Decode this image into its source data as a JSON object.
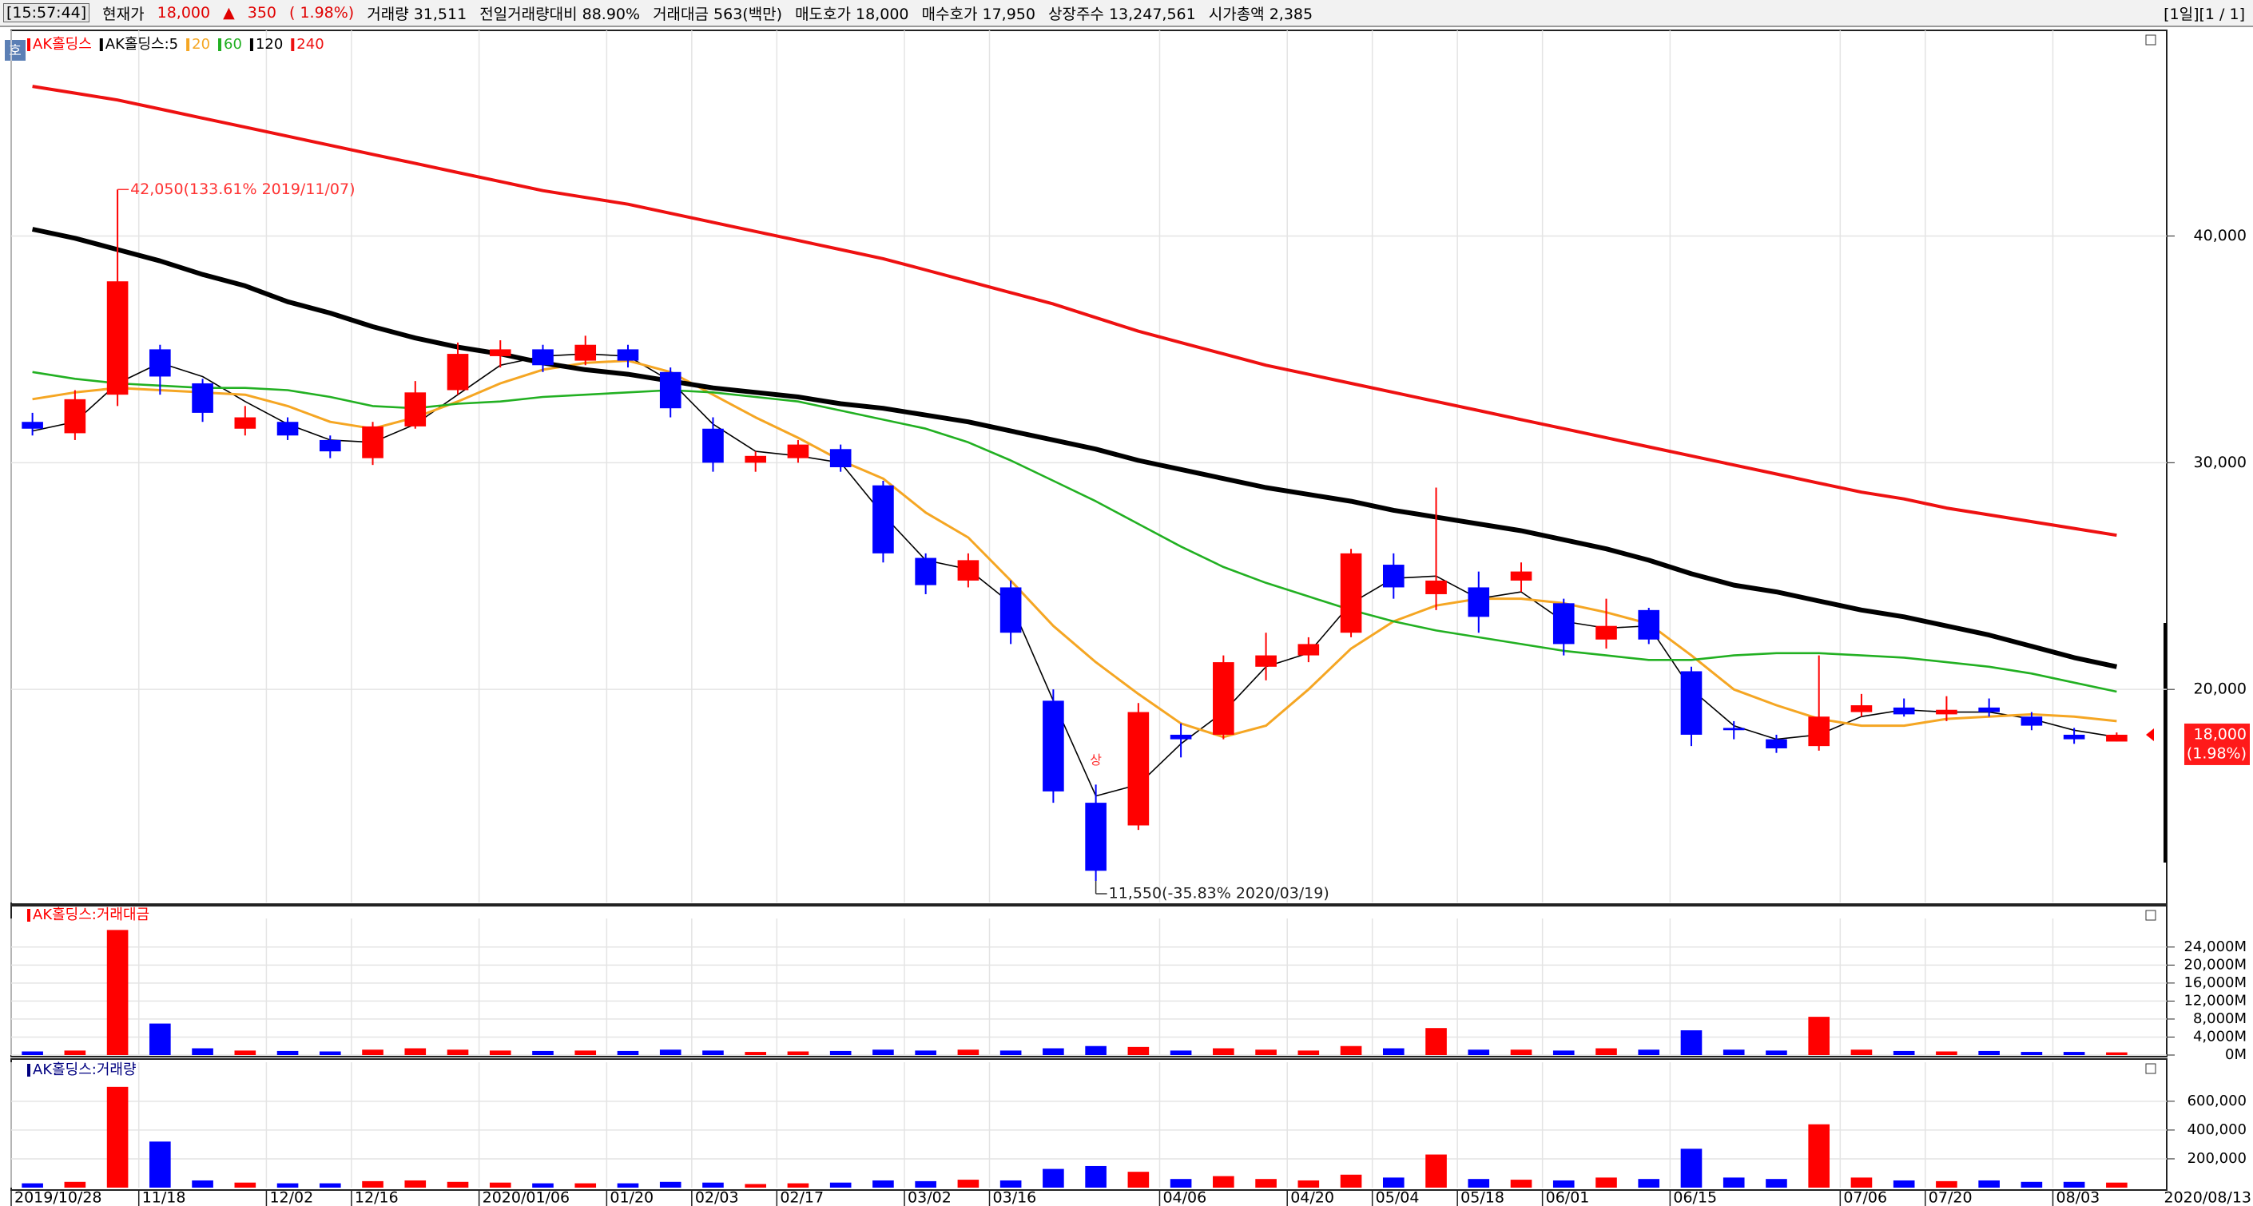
{
  "header": {
    "time": "[15:57:44]",
    "price_label": "현재가",
    "price": "18,000",
    "arrow": "▲",
    "change": "350",
    "change_rate": "( 1.98%)",
    "items": [
      "거래량 31,511",
      "전일거래량대비 88.90%",
      "거래대금 563(백만)",
      "매도호가 18,000",
      "매수호가 17,950",
      "상장주수 13,247,561",
      "시가총액 2,385"
    ],
    "period": "[1일][1 / 1]",
    "icon": "호"
  },
  "chart_data": [
    {
      "type": "candlestick",
      "name": "AK홀딩스",
      "up_color": "#ff0000",
      "down_color": "#0000ff",
      "categories": [
        "2019/10/28",
        null,
        null,
        "11/18",
        null,
        null,
        "12/02",
        null,
        "12/16",
        null,
        null,
        "2020/01/06",
        null,
        null,
        "01/20",
        null,
        "02/03",
        null,
        "02/17",
        null,
        null,
        "03/02",
        null,
        "03/16",
        null,
        null,
        null,
        "04/06",
        null,
        null,
        "04/20",
        null,
        "05/04",
        null,
        "05/18",
        null,
        "06/01",
        null,
        null,
        "06/15",
        null,
        null,
        null,
        "07/06",
        null,
        "07/20",
        null,
        null,
        "08/03",
        null
      ],
      "last_date": "2020/08/13",
      "open": [
        31800,
        31300,
        33000,
        35000,
        33500,
        31500,
        31800,
        31000,
        30200,
        31600,
        33200,
        34700,
        35000,
        34500,
        35000,
        34000,
        31500,
        30000,
        30200,
        30600,
        29000,
        25800,
        24800,
        24500,
        19500,
        15000,
        14000,
        18000,
        18000,
        21000,
        21500,
        22500,
        25500,
        24200,
        24500,
        24800,
        23800,
        22200,
        23500,
        20800,
        18300,
        17800,
        17500,
        19000,
        19200,
        18900,
        19200,
        18800,
        18000,
        17700
      ],
      "high": [
        32200,
        33200,
        42050,
        35200,
        33700,
        32500,
        32000,
        31200,
        31800,
        33600,
        35300,
        35400,
        35200,
        35600,
        35200,
        34200,
        32000,
        30500,
        31000,
        30800,
        29200,
        26000,
        26000,
        24800,
        20000,
        15800,
        19400,
        18500,
        21500,
        22500,
        22300,
        26200,
        26000,
        28900,
        25200,
        25600,
        24000,
        24000,
        23600,
        21000,
        18600,
        18000,
        21500,
        19800,
        19600,
        19700,
        19600,
        19000,
        18300,
        18100
      ],
      "low": [
        31200,
        31000,
        32500,
        33000,
        31800,
        31200,
        31000,
        30200,
        29900,
        31500,
        33000,
        34200,
        34000,
        34300,
        34200,
        32000,
        29600,
        29600,
        30000,
        29600,
        25600,
        24200,
        24500,
        22000,
        15000,
        11550,
        13800,
        17000,
        17800,
        20400,
        21200,
        22300,
        24000,
        23500,
        22500,
        24300,
        21500,
        21800,
        22000,
        17500,
        17800,
        17200,
        17300,
        18800,
        18800,
        18600,
        18800,
        18200,
        17600,
        17700
      ],
      "close": [
        31500,
        32800,
        38000,
        33800,
        32200,
        32000,
        31200,
        30500,
        31600,
        33100,
        34800,
        35000,
        34300,
        35200,
        34500,
        32400,
        30000,
        30300,
        30800,
        29800,
        26000,
        24600,
        25700,
        22500,
        15500,
        12000,
        19000,
        17800,
        21200,
        21500,
        22000,
        26000,
        24500,
        24800,
        23200,
        25200,
        22000,
        22800,
        22200,
        18000,
        18200,
        17400,
        18800,
        19300,
        18900,
        19100,
        19000,
        18400,
        17800,
        18000
      ],
      "series": [
        {
          "name": "AK홀딩스:5",
          "color": "#000000",
          "width": 1.6,
          "values": [
            31400,
            31800,
            33500,
            34400,
            33800,
            32700,
            31700,
            31000,
            30900,
            31700,
            33000,
            34300,
            34700,
            34800,
            34700,
            33600,
            31700,
            30500,
            30300,
            30000,
            27700,
            25700,
            25300,
            23800,
            19500,
            15300,
            15800,
            17600,
            19000,
            21000,
            21600,
            23800,
            24900,
            25000,
            24000,
            24300,
            23000,
            22700,
            22800,
            20000,
            18400,
            17800,
            18000,
            18800,
            19100,
            19000,
            19000,
            18700,
            18200,
            17900
          ]
        },
        {
          "name": "20",
          "color": "#f5a623",
          "width": 3,
          "values": [
            32800,
            33100,
            33300,
            33200,
            33100,
            33000,
            32500,
            31800,
            31500,
            32000,
            32700,
            33500,
            34100,
            34400,
            34500,
            34000,
            33000,
            32000,
            31100,
            30100,
            29300,
            27800,
            26700,
            24800,
            22800,
            21200,
            19800,
            18500,
            17900,
            18400,
            20000,
            21800,
            23000,
            23700,
            24000,
            24000,
            23800,
            23400,
            22900,
            21500,
            20000,
            19300,
            18700,
            18400,
            18400,
            18700,
            18800,
            18900,
            18800,
            18600
          ]
        },
        {
          "name": "60",
          "color": "#22b022",
          "width": 2.6,
          "values": [
            34000,
            33700,
            33500,
            33400,
            33300,
            33300,
            33200,
            32900,
            32500,
            32400,
            32600,
            32700,
            32900,
            33000,
            33100,
            33200,
            33100,
            32900,
            32700,
            32300,
            31900,
            31500,
            30900,
            30100,
            29200,
            28300,
            27300,
            26300,
            25400,
            24700,
            24100,
            23500,
            23000,
            22600,
            22300,
            22000,
            21700,
            21500,
            21300,
            21300,
            21500,
            21600,
            21600,
            21500,
            21400,
            21200,
            21000,
            20700,
            20300,
            19900
          ]
        },
        {
          "name": "120",
          "color": "#000000",
          "width": 6,
          "values": [
            40300,
            39900,
            39400,
            38900,
            38300,
            37800,
            37100,
            36600,
            36000,
            35500,
            35100,
            34800,
            34400,
            34100,
            33900,
            33600,
            33300,
            33100,
            32900,
            32600,
            32400,
            32100,
            31800,
            31400,
            31000,
            30600,
            30100,
            29700,
            29300,
            28900,
            28600,
            28300,
            27900,
            27600,
            27300,
            27000,
            26600,
            26200,
            25700,
            25100,
            24600,
            24300,
            23900,
            23500,
            23200,
            22800,
            22400,
            21900,
            21400,
            21000
          ]
        },
        {
          "name": "240",
          "color": "#ee1111",
          "width": 4,
          "values": [
            46600,
            46300,
            46000,
            45600,
            45200,
            44800,
            44400,
            44000,
            43600,
            43200,
            42800,
            42400,
            42000,
            41700,
            41400,
            41000,
            40600,
            40200,
            39800,
            39400,
            39000,
            38500,
            38000,
            37500,
            37000,
            36400,
            35800,
            35300,
            34800,
            34300,
            33900,
            33500,
            33100,
            32700,
            32300,
            31900,
            31500,
            31100,
            30700,
            30300,
            29900,
            29500,
            29100,
            28700,
            28400,
            28000,
            27700,
            27400,
            27100,
            26800
          ]
        }
      ],
      "ylim": [
        10600,
        49000
      ],
      "yticks": [
        {
          "value": 20000,
          "label": "20,000"
        },
        {
          "value": 30000,
          "label": "30,000"
        },
        {
          "value": 40000,
          "label": "40,000"
        }
      ],
      "grid": true,
      "high_label": "42,050(133.61% 2019/11/07)",
      "low_label": "11,550(-35.83% 2020/03/19)",
      "marker_label": "상",
      "current_price": {
        "value": 18000,
        "label": "18,000"
      },
      "current_rate": "(1.98%)"
    },
    {
      "type": "bar",
      "title": "AK홀딩스:거래대금",
      "values": [
        800,
        1000,
        27800,
        7000,
        1500,
        1000,
        900,
        800,
        1200,
        1500,
        1200,
        1000,
        900,
        1000,
        900,
        1200,
        1000,
        700,
        800,
        900,
        1200,
        1000,
        1200,
        1000,
        1500,
        2000,
        1800,
        1000,
        1500,
        1200,
        1000,
        2000,
        1500,
        6000,
        1200,
        1200,
        1000,
        1500,
        1200,
        5500,
        1200,
        1000,
        8500,
        1200,
        900,
        800,
        900,
        700,
        700,
        600
      ],
      "ylim": [
        0,
        30000
      ],
      "yticks": [
        {
          "value": 0,
          "label": "0M"
        },
        {
          "value": 4000,
          "label": "4,000M"
        },
        {
          "value": 8000,
          "label": "8,000M"
        },
        {
          "value": 12000,
          "label": "12,000M"
        },
        {
          "value": 16000,
          "label": "16,000M"
        },
        {
          "value": 20000,
          "label": "20,000M"
        },
        {
          "value": 24000,
          "label": "24,000M"
        }
      ],
      "grid": true
    },
    {
      "type": "bar",
      "title": "AK홀딩스:거래량",
      "values": [
        30000,
        40000,
        700000,
        320000,
        50000,
        35000,
        30000,
        30000,
        45000,
        50000,
        40000,
        35000,
        30000,
        30000,
        30000,
        40000,
        35000,
        25000,
        30000,
        35000,
        50000,
        45000,
        55000,
        50000,
        130000,
        150000,
        110000,
        60000,
        80000,
        60000,
        50000,
        90000,
        70000,
        230000,
        60000,
        55000,
        50000,
        70000,
        60000,
        270000,
        70000,
        60000,
        440000,
        70000,
        50000,
        45000,
        50000,
        40000,
        40000,
        35000
      ],
      "ylim": [
        0,
        860000
      ],
      "yticks": [
        {
          "value": 200000,
          "label": "200,000"
        },
        {
          "value": 400000,
          "label": "400,000"
        },
        {
          "value": 600000,
          "label": "600,000"
        }
      ],
      "grid": true
    }
  ]
}
